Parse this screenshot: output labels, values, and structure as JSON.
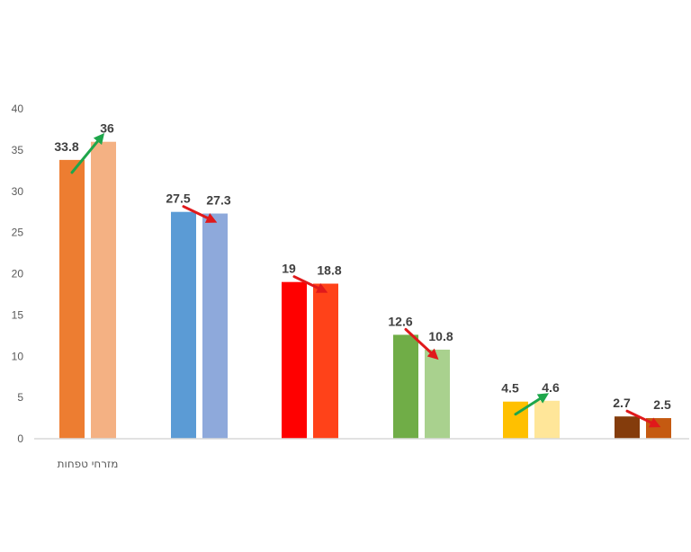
{
  "chart_data": {
    "type": "bar",
    "title": "",
    "xlabel": "",
    "ylabel": "",
    "ylim": [
      0,
      40
    ],
    "yticks": [
      "0",
      "5",
      "10",
      "15",
      "20",
      "25",
      "30",
      "35",
      "40"
    ],
    "grid": false,
    "legend": "none",
    "categories": [
      "מזרחי טפחות",
      "",
      "",
      "",
      "",
      ""
    ],
    "groups": [
      {
        "values": [
          33.8,
          36
        ],
        "labels": [
          "33.8",
          "36"
        ],
        "colors": [
          "#ED7D31",
          "#F4B183"
        ],
        "trend": "up"
      },
      {
        "values": [
          27.5,
          27.3
        ],
        "labels": [
          "27.5",
          "27.3"
        ],
        "colors": [
          "#5B9BD5",
          "#8EA9DB"
        ],
        "trend": "down"
      },
      {
        "values": [
          19,
          18.8
        ],
        "labels": [
          "19",
          "18.8"
        ],
        "colors": [
          "#FF0000",
          "#FF4219"
        ],
        "trend": "down"
      },
      {
        "values": [
          12.6,
          10.8
        ],
        "labels": [
          "12.6",
          "10.8"
        ],
        "colors": [
          "#70AD47",
          "#A9D18E"
        ],
        "trend": "down"
      },
      {
        "values": [
          4.5,
          4.6
        ],
        "labels": [
          "4.5",
          "4.6"
        ],
        "colors": [
          "#FFC000",
          "#FFE699"
        ],
        "trend": "up"
      },
      {
        "values": [
          2.7,
          2.5
        ],
        "labels": [
          "2.7",
          "2.5"
        ],
        "colors": [
          "#843C0C",
          "#C55A11"
        ],
        "trend": "down"
      }
    ],
    "arrow_colors": {
      "up": "#1EA64B",
      "down": "#E0191B"
    },
    "axis_color": "#D9D9D9"
  }
}
